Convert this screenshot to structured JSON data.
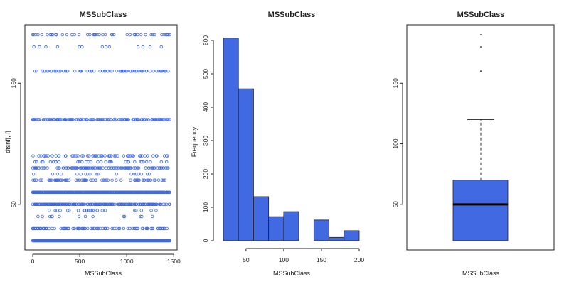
{
  "colors": {
    "accent": "#4169e1",
    "stroke": "#222222"
  },
  "chart_data": [
    {
      "type": "scatter",
      "title": "MSSubClass",
      "xlabel": "MSSubClass",
      "ylabel": "dtsnf[, i]",
      "xlim": [
        0,
        1460
      ],
      "ylim": [
        20,
        190
      ],
      "x_ticks": [
        0,
        500,
        1000,
        1500
      ],
      "y_ticks": [
        50,
        150
      ],
      "grid": false,
      "levels": [
        {
          "y": 20,
          "density": 1.0
        },
        {
          "y": 30,
          "density": 0.25
        },
        {
          "y": 40,
          "density": 0.03
        },
        {
          "y": 45,
          "density": 0.05
        },
        {
          "y": 50,
          "density": 0.45
        },
        {
          "y": 60,
          "density": 0.85
        },
        {
          "y": 70,
          "density": 0.2
        },
        {
          "y": 75,
          "density": 0.05
        },
        {
          "y": 80,
          "density": 0.25
        },
        {
          "y": 85,
          "density": 0.1
        },
        {
          "y": 90,
          "density": 0.15
        },
        {
          "y": 120,
          "density": 0.3
        },
        {
          "y": 160,
          "density": 0.2
        },
        {
          "y": 180,
          "density": 0.03
        },
        {
          "y": 190,
          "density": 0.12
        }
      ]
    },
    {
      "type": "bar",
      "title": "MSSubClass",
      "xlabel": "MSSubClass",
      "ylabel": "Frequency",
      "bins": [
        {
          "from": 20,
          "to": 40,
          "count": 607
        },
        {
          "from": 40,
          "to": 60,
          "count": 455
        },
        {
          "from": 60,
          "to": 80,
          "count": 132
        },
        {
          "from": 80,
          "to": 100,
          "count": 72
        },
        {
          "from": 100,
          "to": 120,
          "count": 87
        },
        {
          "from": 120,
          "to": 140,
          "count": 0
        },
        {
          "from": 140,
          "to": 160,
          "count": 62
        },
        {
          "from": 160,
          "to": 180,
          "count": 10
        },
        {
          "from": 180,
          "to": 200,
          "count": 30
        }
      ],
      "xlim": [
        20,
        200
      ],
      "ylim": [
        0,
        620
      ],
      "x_ticks": [
        50,
        100,
        150,
        200
      ],
      "y_ticks": [
        0,
        100,
        200,
        300,
        400,
        500,
        600
      ],
      "grid": false
    },
    {
      "type": "box",
      "title": "MSSubClass",
      "xlabel": "MSSubClass",
      "ylabel": "",
      "min": 20,
      "q1": 20,
      "median": 50,
      "q3": 70,
      "max": 120,
      "outliers": [
        160,
        180,
        190
      ],
      "ylim": [
        20,
        190
      ],
      "y_ticks": [
        50,
        100,
        150
      ],
      "grid": false
    }
  ]
}
